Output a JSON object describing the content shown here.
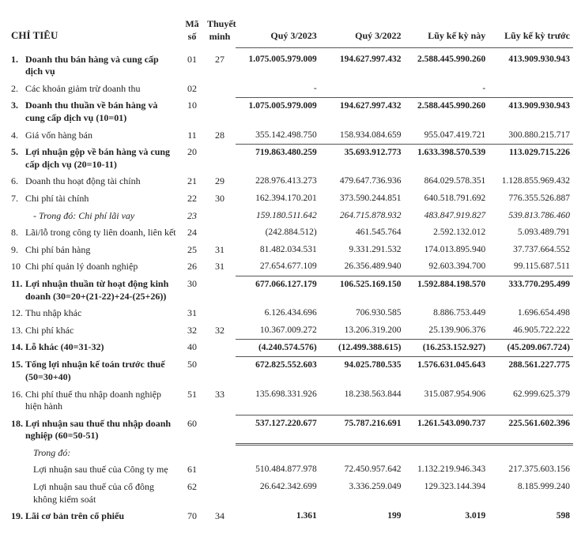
{
  "headers": {
    "chitieu": "CHỈ TIÊU",
    "maso": "Mã số",
    "thuyetminh": "Thuyết minh",
    "col1": "Quý 3/2023",
    "col2": "Quý 3/2022",
    "col3": "Lũy kế kỳ này",
    "col4": "Lũy kế kỳ trước"
  },
  "rows": [
    {
      "idx": "1.",
      "title": "Doanh thu bán hàng và cung cấp dịch vụ",
      "maso": "01",
      "tm": "27",
      "v": [
        "1.075.005.979.009",
        "194.627.997.432",
        "2.588.445.990.260",
        "413.909.930.943"
      ],
      "bold": true
    },
    {
      "idx": "2.",
      "title": "Các khoản giảm trừ doanh thu",
      "maso": "02",
      "tm": "",
      "v": [
        "-",
        "",
        "-",
        ""
      ]
    },
    {
      "idx": "3.",
      "title": "Doanh thu thuần về bán hàng và cung cấp dịch vụ (10=01)",
      "maso": "10",
      "tm": "",
      "v": [
        "1.075.005.979.009",
        "194.627.997.432",
        "2.588.445.990.260",
        "413.909.930.943"
      ],
      "bold": true,
      "totaltop": true
    },
    {
      "idx": "4.",
      "title": "Giá vốn hàng bán",
      "maso": "11",
      "tm": "28",
      "v": [
        "355.142.498.750",
        "158.934.084.659",
        "955.047.419.721",
        "300.880.215.717"
      ]
    },
    {
      "idx": "5.",
      "title": "Lợi nhuận gộp về bán hàng và cung cấp dịch vụ (20=10-11)",
      "maso": "20",
      "tm": "",
      "v": [
        "719.863.480.259",
        "35.693.912.773",
        "1.633.398.570.539",
        "113.029.715.226"
      ],
      "bold": true,
      "totaltop": true
    },
    {
      "idx": "6.",
      "title": "Doanh thu hoạt động tài chính",
      "maso": "21",
      "tm": "29",
      "v": [
        "228.976.413.273",
        "479.647.736.936",
        "864.029.578.351",
        "1.128.855.969.432"
      ]
    },
    {
      "idx": "7.",
      "title": "Chi phí tài chính",
      "maso": "22",
      "tm": "30",
      "v": [
        "162.394.170.201",
        "373.590.244.851",
        "640.518.791.692",
        "776.355.526.887"
      ]
    },
    {
      "idx": "",
      "title": "- Trong đó: Chi phí lãi vay",
      "maso": "23",
      "tm": "",
      "v": [
        "159.180.511.642",
        "264.715.878.932",
        "483.847.919.827",
        "539.813.786.460"
      ],
      "italic": true,
      "indent": true
    },
    {
      "idx": "8.",
      "title": "Lãi/lỗ trong công ty liên doanh, liên kết",
      "maso": "24",
      "tm": "",
      "v": [
        "(242.884.512)",
        "461.545.764",
        "2.592.132.012",
        "5.093.489.791"
      ]
    },
    {
      "idx": "9.",
      "title": "Chi phí bán hàng",
      "maso": "25",
      "tm": "31",
      "v": [
        "81.482.034.531",
        "9.331.291.532",
        "174.013.895.940",
        "37.737.664.552"
      ]
    },
    {
      "idx": "10",
      "title": "Chi phí quản lý doanh nghiệp",
      "maso": "26",
      "tm": "31",
      "v": [
        "27.654.677.109",
        "26.356.489.940",
        "92.603.394.700",
        "99.115.687.511"
      ]
    },
    {
      "idx": "11.",
      "title": "Lợi nhuận thuần từ hoạt động kinh doanh (30=20+(21-22)+24-(25+26))",
      "maso": "30",
      "tm": "",
      "v": [
        "677.066.127.179",
        "106.525.169.150",
        "1.592.884.198.570",
        "333.770.295.499"
      ],
      "bold": true,
      "totaltop": true
    },
    {
      "idx": "12.",
      "title": "Thu nhập khác",
      "maso": "31",
      "tm": "",
      "v": [
        "6.126.434.696",
        "706.930.585",
        "8.886.753.449",
        "1.696.654.498"
      ]
    },
    {
      "idx": "13.",
      "title": "Chi phí khác",
      "maso": "32",
      "tm": "32",
      "v": [
        "10.367.009.272",
        "13.206.319.200",
        "25.139.906.376",
        "46.905.722.222"
      ]
    },
    {
      "idx": "14.",
      "title": "Lỗ khác (40=31-32)",
      "maso": "40",
      "tm": "",
      "v": [
        "(4.240.574.576)",
        "(12.499.388.615)",
        "(16.253.152.927)",
        "(45.209.067.724)"
      ],
      "bold": true,
      "totaltop": true
    },
    {
      "idx": "15.",
      "title": "Tổng lợi nhuận kế toán trước thuế (50=30+40)",
      "maso": "50",
      "tm": "",
      "v": [
        "672.825.552.603",
        "94.025.780.535",
        "1.576.631.045.643",
        "288.561.227.775"
      ],
      "bold": true,
      "totaltop": true
    },
    {
      "idx": "16.",
      "title": "Chi phí thuế thu nhập doanh nghiệp hiện hành",
      "maso": "51",
      "tm": "33",
      "v": [
        "135.698.331.926",
        "18.238.563.844",
        "315.087.954.906",
        "62.999.625.379"
      ]
    },
    {
      "idx": "18.",
      "title": "Lợi nhuận sau thuế thu nhập doanh nghiệp (60=50-51)",
      "maso": "60",
      "tm": "",
      "v": [
        "537.127.220.677",
        "75.787.216.691",
        "1.261.543.090.737",
        "225.561.602.396"
      ],
      "bold": true,
      "dbl": true
    },
    {
      "idx": "",
      "title": "Trong đó:",
      "maso": "",
      "tm": "",
      "v": [
        "",
        "",
        "",
        ""
      ],
      "indent": true,
      "italic": true
    },
    {
      "idx": "",
      "title": "Lợi nhuận sau thuế của Công ty mẹ",
      "maso": "61",
      "tm": "",
      "v": [
        "510.484.877.978",
        "72.450.957.642",
        "1.132.219.946.343",
        "217.375.603.156"
      ],
      "indent": true
    },
    {
      "idx": "",
      "title": "Lợi nhuận sau thuế của cổ đông không kiểm soát",
      "maso": "62",
      "tm": "",
      "v": [
        "26.642.342.699",
        "3.336.259.049",
        "129.323.144.394",
        "8.185.999.240"
      ],
      "indent": true
    },
    {
      "idx": "19.",
      "title": "Lãi cơ bản trên cổ phiếu",
      "maso": "70",
      "tm": "34",
      "v": [
        "1.361",
        "199",
        "3.019",
        "598"
      ],
      "bold": true
    }
  ]
}
